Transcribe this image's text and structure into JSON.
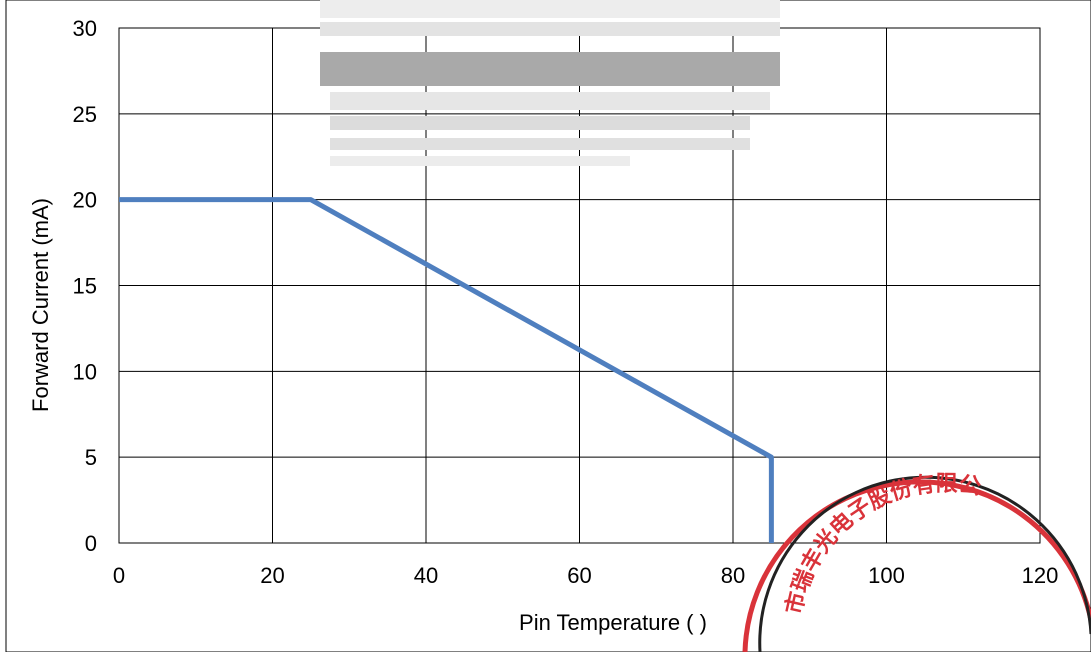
{
  "chart_data": {
    "type": "line",
    "xlabel": "Pin Temperature (   )",
    "ylabel": "Forward Current (mA)",
    "xlim": [
      0,
      120
    ],
    "ylim": [
      0,
      30
    ],
    "x_ticks": [
      0,
      20,
      40,
      60,
      80,
      100,
      120
    ],
    "y_ticks": [
      0,
      5,
      10,
      15,
      20,
      25,
      30
    ],
    "grid": true,
    "series": [
      {
        "color": "#4f7fbf",
        "points": [
          {
            "x": 0,
            "y": 20
          },
          {
            "x": 25,
            "y": 20
          },
          {
            "x": 85,
            "y": 5
          },
          {
            "x": 85,
            "y": 0
          }
        ]
      }
    ]
  },
  "stamp": {
    "text": "市瑞丰光电子股份有限公",
    "color": "#d9333a"
  }
}
